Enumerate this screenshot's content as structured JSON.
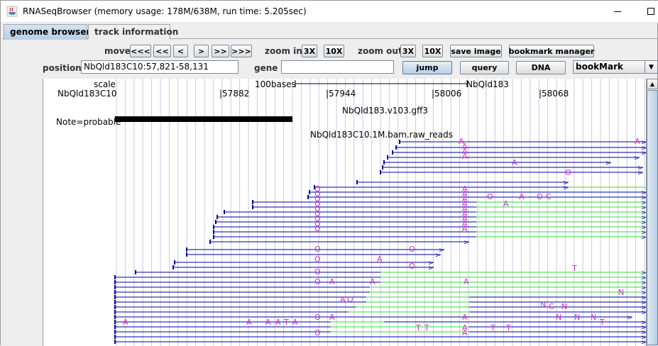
{
  "window": {
    "title": "RNASeqBrowser (memory usage: 178M/638M, run time: 5.205sec)"
  },
  "tabs": [
    {
      "label": "genome browser",
      "active": true
    },
    {
      "label": "track information",
      "active": false
    }
  ],
  "controls": {
    "move_label": "move",
    "move_buttons": [
      "<<<",
      "<<",
      "<",
      ">",
      ">>",
      ">>>"
    ],
    "zoom_in_label": "zoom in",
    "zoom_in_buttons": [
      "3X",
      "10X"
    ],
    "zoom_out_label": "zoom out",
    "zoom_out_buttons": [
      "3X",
      "10X"
    ],
    "save_image": "save image",
    "bookmark_manager": "bookmark manager",
    "position_label": "position",
    "position_value": "NbQld183C10:57,821-58,131",
    "gene_label": "gene",
    "gene_value": "",
    "jump": "jump",
    "query": "query",
    "dna": "DNA",
    "bookmark_select": "bookMark"
  },
  "ruler": {
    "scale_label": "scale",
    "scale_bar_label": "100bases",
    "scale_bar_right_label": "NbQld183",
    "chrom_label": "NbQld183C10",
    "ticks": [
      "|57882",
      "|57944",
      "|58006",
      "|58068"
    ]
  },
  "tracks": {
    "gff_name": "NbQld183.v103.gff3",
    "gff_feature": "Note=probable",
    "bam_name": "NbQld183C10.1M.bam.raw_reads"
  },
  "colors": {
    "read_line": "#00009c",
    "splice_line": "#33dd33",
    "mismatch": "#cc33cc",
    "grid": "#c8c8e6",
    "tab_active": "#c5d8ec"
  },
  "icons": {
    "app": "java-cup-icon",
    "minimize": "minimize-icon",
    "maximize": "maximize-icon",
    "dropdown": "chevron-down-icon",
    "scroll_up": "arrow-up-icon",
    "scroll_down": "arrow-down-icon"
  }
}
